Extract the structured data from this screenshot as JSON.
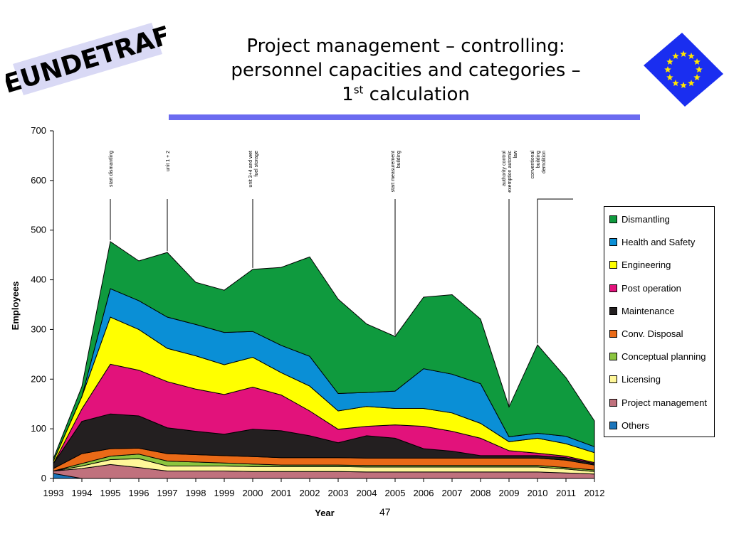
{
  "logo": {
    "text": "EUNDETRAF"
  },
  "title": {
    "line1": "Project management – controlling:",
    "line2": "personnel capacities and categories –",
    "line3_main": "1",
    "line3_sup": "st",
    "line3_rest": " calculation"
  },
  "page_number": "47",
  "colors": {
    "Dismantling": "#0f9a3e",
    "Health and Safety": "#0a8fd6",
    "Engineering": "#ffff00",
    "Post operation": "#e2127b",
    "Maintenance": "#231f20",
    "Conv. Disposal": "#ea6a17",
    "Conceptual planning": "#8bc53f",
    "Licensing": "#fff799",
    "Project management": "#c0717d",
    "Others": "#1b75bb",
    "title_bar": "#6b6bf0",
    "flag_blue": "#1a2ef0",
    "flag_star": "#ffe600"
  },
  "chart_data": {
    "type": "area",
    "stacked": true,
    "title": "",
    "xlabel": "Year",
    "ylabel": "Employees",
    "x": [
      1993,
      1994,
      1995,
      1996,
      1997,
      1998,
      1999,
      2000,
      2001,
      2002,
      2003,
      2004,
      2005,
      2006,
      2007,
      2008,
      2009,
      2010,
      2011,
      2012
    ],
    "ylim": [
      0,
      700
    ],
    "yticks": [
      0,
      100,
      200,
      300,
      400,
      500,
      600,
      700
    ],
    "grid": false,
    "legend_position": "right",
    "series": [
      {
        "name": "Others",
        "values": [
          10,
          0,
          0,
          0,
          0,
          0,
          0,
          0,
          0,
          0,
          0,
          0,
          0,
          0,
          0,
          0,
          0,
          0,
          0,
          0
        ]
      },
      {
        "name": "Project management",
        "values": [
          5,
          20,
          28,
          22,
          15,
          15,
          15,
          14,
          14,
          14,
          14,
          13,
          13,
          13,
          13,
          13,
          13,
          13,
          11,
          9
        ]
      },
      {
        "name": "Licensing",
        "values": [
          0,
          5,
          10,
          18,
          10,
          10,
          10,
          10,
          10,
          10,
          10,
          10,
          10,
          10,
          10,
          10,
          10,
          10,
          8,
          5
        ]
      },
      {
        "name": "Conceptual planning",
        "values": [
          0,
          5,
          7,
          9,
          10,
          8,
          6,
          5,
          3,
          3,
          3,
          3,
          3,
          3,
          3,
          3,
          3,
          3,
          3,
          3
        ]
      },
      {
        "name": "Conv. Disposal",
        "values": [
          5,
          20,
          15,
          12,
          15,
          15,
          15,
          15,
          15,
          15,
          15,
          15,
          15,
          15,
          15,
          15,
          15,
          15,
          15,
          10
        ]
      },
      {
        "name": "Maintenance",
        "values": [
          10,
          65,
          70,
          65,
          52,
          47,
          43,
          55,
          54,
          44,
          30,
          45,
          40,
          19,
          14,
          5,
          5,
          5,
          5,
          3
        ]
      },
      {
        "name": "Post operation",
        "values": [
          0,
          25,
          100,
          92,
          93,
          85,
          80,
          85,
          72,
          50,
          27,
          19,
          27,
          45,
          40,
          35,
          10,
          5,
          3,
          2
        ]
      },
      {
        "name": "Engineering",
        "values": [
          5,
          25,
          95,
          82,
          67,
          67,
          60,
          60,
          45,
          50,
          37,
          40,
          33,
          36,
          37,
          30,
          18,
          30,
          25,
          20
        ]
      },
      {
        "name": "Health and Safety",
        "values": [
          0,
          0,
          57,
          58,
          63,
          63,
          65,
          52,
          55,
          60,
          35,
          28,
          35,
          80,
          78,
          80,
          10,
          10,
          15,
          12
        ]
      },
      {
        "name": "Dismantling",
        "values": [
          5,
          20,
          95,
          80,
          130,
          85,
          85,
          125,
          157,
          200,
          190,
          138,
          110,
          144,
          160,
          130,
          60,
          178,
          118,
          52
        ]
      }
    ],
    "annotations": [
      {
        "x": 1995,
        "text": "start dismantling"
      },
      {
        "x": 1997,
        "text": "unit 1 + 2"
      },
      {
        "x": 2000,
        "text": "unit 3+4 and wet fuel storage"
      },
      {
        "x": 2005,
        "text": "start measurement building"
      },
      {
        "x": 2009,
        "text": "authority control exemption automic law"
      },
      {
        "x": 2010,
        "text": "conventional building demolition"
      }
    ]
  }
}
